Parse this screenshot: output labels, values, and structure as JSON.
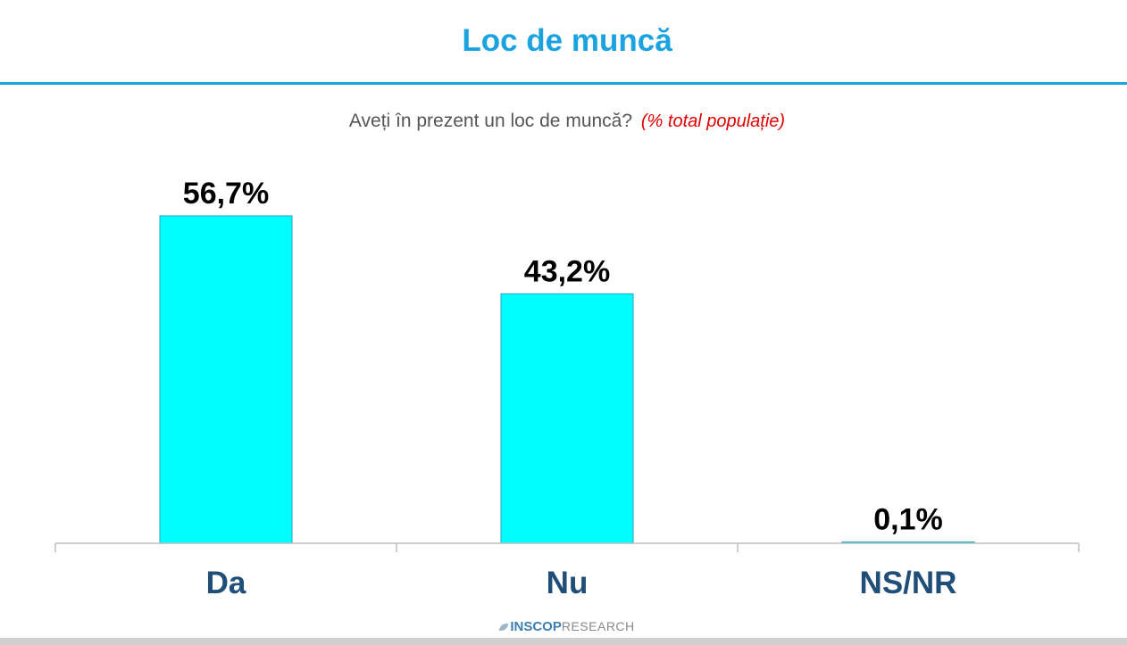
{
  "title": "Loc de muncă",
  "subtitle": {
    "question": "Aveți în prezent un loc de muncă?",
    "note": "(% total populație)"
  },
  "logo": {
    "brand": "INSCOP",
    "sub": "RESEARCH"
  },
  "colors": {
    "title": "#1ba3e0",
    "bar_fill": "#00ffff",
    "bar_stroke": "#1ea5c7",
    "category_text": "#1f4e79",
    "note": "#e00000"
  },
  "chart_data": {
    "type": "bar",
    "title": "Loc de muncă",
    "subtitle": "Aveți în prezent un loc de muncă? (% total populație)",
    "categories": [
      "Da",
      "Nu",
      "NS/NR"
    ],
    "values": [
      56.7,
      43.2,
      0.1
    ],
    "data_labels": [
      "56,7%",
      "43,2%",
      "0,1%"
    ],
    "xlabel": "",
    "ylabel": "",
    "ylim": [
      0,
      57
    ],
    "grid": false,
    "legend": "none"
  }
}
